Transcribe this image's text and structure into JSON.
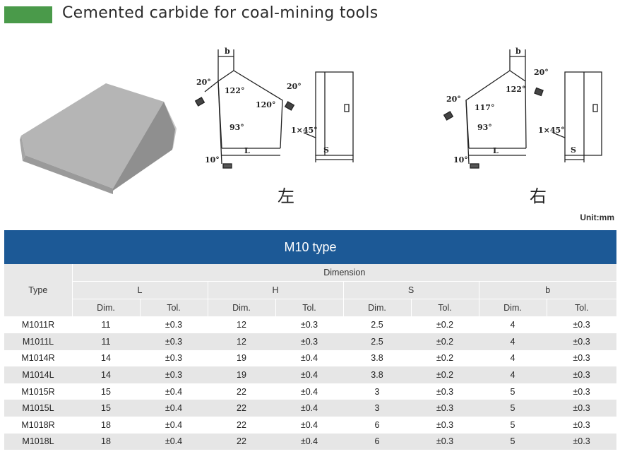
{
  "page_title": "Cemented carbide for coal-mining tools",
  "unit_label": "Unit:mm",
  "drawing": {
    "left_label": "左",
    "right_label": "右",
    "dims": {
      "b": "b",
      "L": "L",
      "H": "H",
      "S": "S",
      "chamfer": "1×45°"
    },
    "angles_left": {
      "a20": "20°",
      "a122": "122°",
      "a120": "120°",
      "a20b": "20°",
      "a93": "93°",
      "a10": "10°"
    },
    "angles_right": {
      "a20": "20°",
      "a117": "117°",
      "a122": "122°",
      "a20b": "20°",
      "a93": "93°",
      "a10": "10°"
    }
  },
  "table": {
    "title": "M10 type",
    "type_header": "Type",
    "dimension_header": "Dimension",
    "groups": [
      "L",
      "H",
      "S",
      "b"
    ],
    "sub": [
      "Dim.",
      "Tol."
    ],
    "rows": [
      {
        "type": "M1011R",
        "L": "11",
        "Lt": "±0.3",
        "H": "12",
        "Ht": "±0.3",
        "S": "2.5",
        "St": "±0.2",
        "b": "4",
        "bt": "±0.3"
      },
      {
        "type": "M1011L",
        "L": "11",
        "Lt": "±0.3",
        "H": "12",
        "Ht": "±0.3",
        "S": "2.5",
        "St": "±0.2",
        "b": "4",
        "bt": "±0.3"
      },
      {
        "type": "M1014R",
        "L": "14",
        "Lt": "±0.3",
        "H": "19",
        "Ht": "±0.4",
        "S": "3.8",
        "St": "±0.2",
        "b": "4",
        "bt": "±0.3"
      },
      {
        "type": "M1014L",
        "L": "14",
        "Lt": "±0.3",
        "H": "19",
        "Ht": "±0.4",
        "S": "3.8",
        "St": "±0.2",
        "b": "4",
        "bt": "±0.3"
      },
      {
        "type": "M1015R",
        "L": "15",
        "Lt": "±0.4",
        "H": "22",
        "Ht": "±0.4",
        "S": "3",
        "St": "±0.3",
        "b": "5",
        "bt": "±0.3"
      },
      {
        "type": "M1015L",
        "L": "15",
        "Lt": "±0.4",
        "H": "22",
        "Ht": "±0.4",
        "S": "3",
        "St": "±0.3",
        "b": "5",
        "bt": "±0.3"
      },
      {
        "type": "M1018R",
        "L": "18",
        "Lt": "±0.4",
        "H": "22",
        "Ht": "±0.4",
        "S": "6",
        "St": "±0.3",
        "b": "5",
        "bt": "±0.3"
      },
      {
        "type": "M1018L",
        "L": "18",
        "Lt": "±0.4",
        "H": "22",
        "Ht": "±0.4",
        "S": "6",
        "St": "±0.3",
        "b": "5",
        "bt": "±0.3"
      }
    ]
  }
}
